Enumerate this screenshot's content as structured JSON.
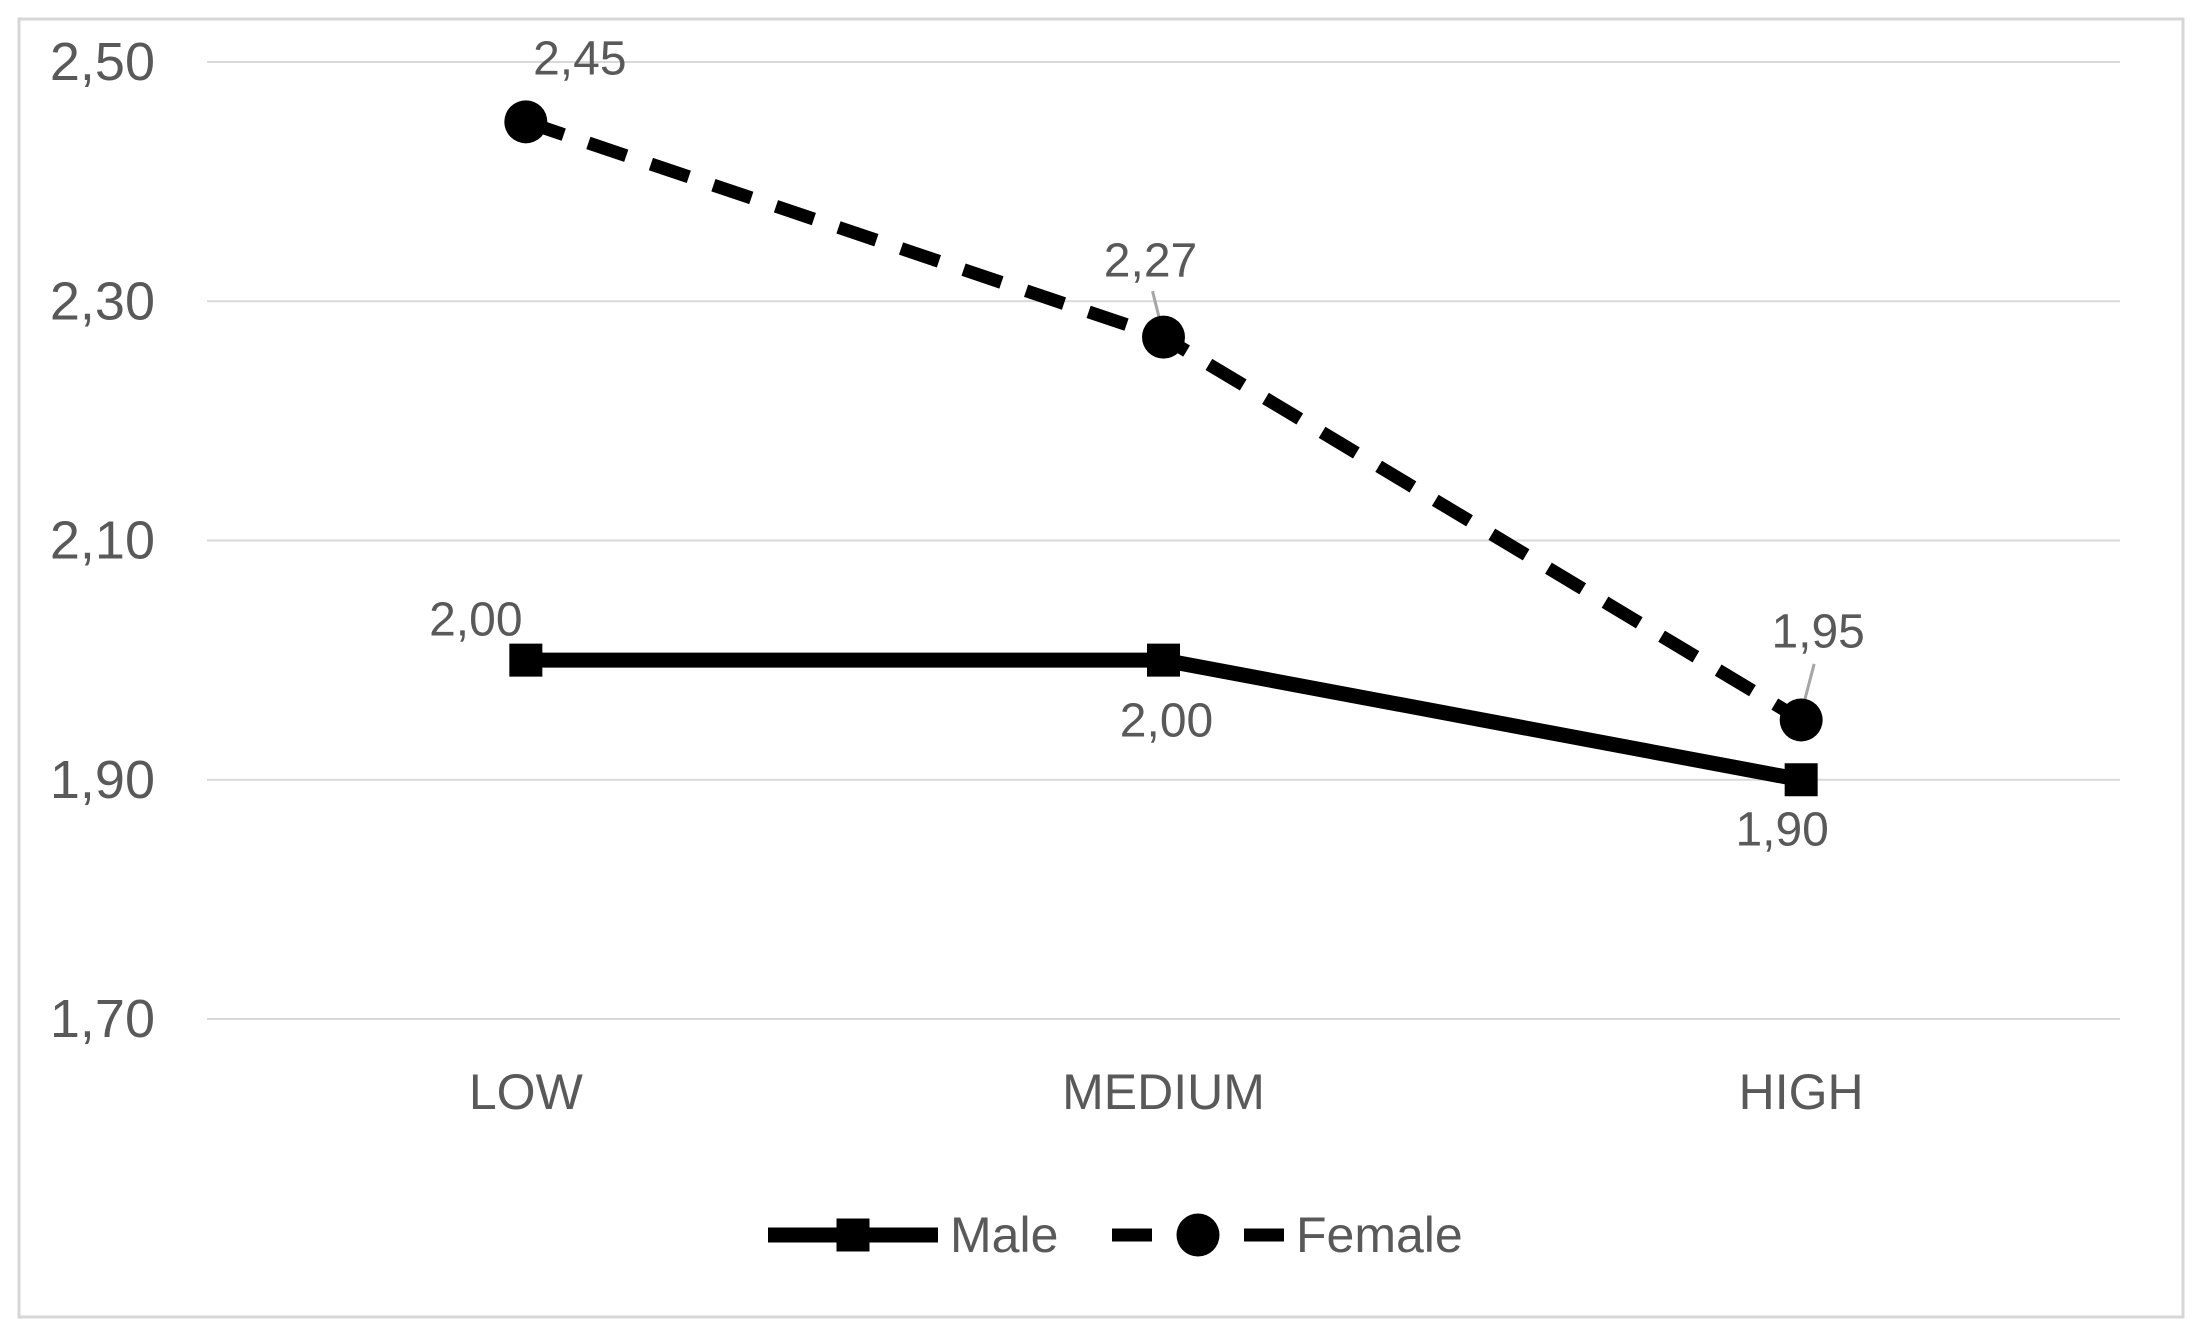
{
  "chart_data": {
    "type": "line",
    "title": "",
    "xlabel": "",
    "ylabel": "",
    "categories": [
      "LOW",
      "MEDIUM",
      "HIGH"
    ],
    "series": [
      {
        "name": "Male",
        "values": [
          2.0,
          2.0,
          1.9
        ],
        "data_labels": [
          "2,00",
          "2,00",
          "1,90"
        ],
        "line_style": "solid",
        "marker": "square",
        "color": "#000000"
      },
      {
        "name": "Female",
        "values": [
          2.45,
          2.27,
          1.95
        ],
        "data_labels": [
          "2,45",
          "2,27",
          "1,95"
        ],
        "line_style": "dashed",
        "marker": "circle",
        "color": "#000000"
      }
    ],
    "y_axis": {
      "min": 1.7,
      "max": 2.5,
      "ticks": [
        2.5,
        2.3,
        2.1,
        1.9,
        1.7
      ],
      "tick_labels": [
        "2,50",
        "2,30",
        "2,10",
        "1,90",
        "1,70"
      ],
      "decimal_separator": ","
    },
    "grid": true,
    "legend": {
      "position": "bottom",
      "entries": [
        {
          "label": "Male",
          "swatch": "solid-line-square-marker"
        },
        {
          "label": "Female",
          "swatch": "dashed-line-circle-marker"
        }
      ]
    },
    "colors": {
      "series_line": "#000000",
      "text": "#595959",
      "gridline": "#D9D9D9",
      "chart_border": "#D7D7D7",
      "leader_line": "#A6A6A6",
      "background": "#FFFFFF"
    }
  }
}
